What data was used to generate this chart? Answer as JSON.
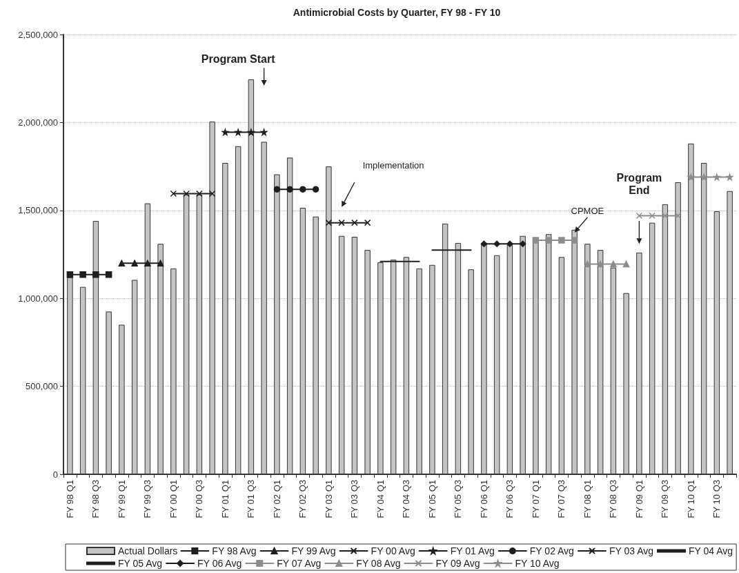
{
  "chart_data": {
    "type": "bar",
    "title": "Antimicrobial Costs by Quarter, FY 98 - FY 10",
    "categories": [
      "FY 98 Q1",
      null,
      "FY 98 Q3",
      null,
      "FY 99 Q1",
      null,
      "FY 99 Q3",
      null,
      "FY 00 Q1",
      null,
      "FY 00 Q3",
      null,
      "FY 01 Q1",
      null,
      "FY 01 Q3",
      null,
      "FY 02 Q1",
      null,
      "FY 02 Q3",
      null,
      "FY 03 Q1",
      null,
      "FY 03 Q3",
      null,
      "FY 04 Q1",
      null,
      "FY 04 Q3",
      null,
      "FY 05 Q1",
      null,
      "FY 05 Q3",
      null,
      "FY 06 Q1",
      null,
      "FY 06 Q3",
      null,
      "FY 07 Q1",
      null,
      "FY 07 Q3",
      null,
      "FY 08 Q1",
      null,
      "FY 08 Q3",
      null,
      "FY 09 Q1",
      null,
      "FY 09 Q3",
      null,
      "FY 10 Q1",
      null,
      "FY 10 Q3",
      null
    ],
    "series": [
      {
        "name": "Actual Dollars",
        "color": "#c4c4c4",
        "values": [
          1120000,
          1065000,
          1440000,
          925000,
          850000,
          1105000,
          1540000,
          1310000,
          1170000,
          1590000,
          1590000,
          2005000,
          1770000,
          1865000,
          2245000,
          1890000,
          1705000,
          1800000,
          1515000,
          1465000,
          1750000,
          1355000,
          1350000,
          1275000,
          1205000,
          1220000,
          1235000,
          1170000,
          1190000,
          1425000,
          1315000,
          1165000,
          1315000,
          1245000,
          1305000,
          1355000,
          1325000,
          1365000,
          1235000,
          1390000,
          1310000,
          1275000,
          1175000,
          1030000,
          1260000,
          1430000,
          1535000,
          1660000,
          1880000,
          1770000,
          1495000,
          1610000
        ]
      },
      {
        "name": "FY 98 Avg",
        "type": "line",
        "marker": "square",
        "color": "#1e1e1e",
        "values": [
          1135000,
          1135000,
          1135000,
          1135000,
          null,
          null,
          null,
          null,
          null,
          null,
          null,
          null,
          null,
          null,
          null,
          null,
          null,
          null,
          null,
          null,
          null,
          null,
          null,
          null,
          null,
          null,
          null,
          null,
          null,
          null,
          null,
          null,
          null,
          null,
          null,
          null,
          null,
          null,
          null,
          null,
          null,
          null,
          null,
          null,
          null,
          null,
          null,
          null,
          null,
          null,
          null,
          null
        ]
      },
      {
        "name": "FY 99 Avg",
        "type": "line",
        "marker": "triangle",
        "color": "#1e1e1e",
        "values": [
          null,
          null,
          null,
          null,
          1200000,
          1200000,
          1200000,
          1200000,
          null,
          null,
          null,
          null,
          null,
          null,
          null,
          null,
          null,
          null,
          null,
          null,
          null,
          null,
          null,
          null,
          null,
          null,
          null,
          null,
          null,
          null,
          null,
          null,
          null,
          null,
          null,
          null,
          null,
          null,
          null,
          null,
          null,
          null,
          null,
          null,
          null,
          null,
          null,
          null,
          null,
          null,
          null,
          null
        ]
      },
      {
        "name": "FY 00 Avg",
        "type": "line",
        "marker": "cross",
        "color": "#1e1e1e",
        "values": [
          null,
          null,
          null,
          null,
          null,
          null,
          null,
          null,
          1595000,
          1595000,
          1595000,
          1595000,
          null,
          null,
          null,
          null,
          null,
          null,
          null,
          null,
          null,
          null,
          null,
          null,
          null,
          null,
          null,
          null,
          null,
          null,
          null,
          null,
          null,
          null,
          null,
          null,
          null,
          null,
          null,
          null,
          null,
          null,
          null,
          null,
          null,
          null,
          null,
          null,
          null,
          null,
          null,
          null
        ]
      },
      {
        "name": "FY 01 Avg",
        "type": "line",
        "marker": "star",
        "color": "#1e1e1e",
        "values": [
          null,
          null,
          null,
          null,
          null,
          null,
          null,
          null,
          null,
          null,
          null,
          null,
          1945000,
          1945000,
          1945000,
          1945000,
          null,
          null,
          null,
          null,
          null,
          null,
          null,
          null,
          null,
          null,
          null,
          null,
          null,
          null,
          null,
          null,
          null,
          null,
          null,
          null,
          null,
          null,
          null,
          null,
          null,
          null,
          null,
          null,
          null,
          null,
          null,
          null,
          null,
          null,
          null,
          null
        ]
      },
      {
        "name": "FY 02 Avg",
        "type": "line",
        "marker": "circle",
        "color": "#1e1e1e",
        "values": [
          null,
          null,
          null,
          null,
          null,
          null,
          null,
          null,
          null,
          null,
          null,
          null,
          null,
          null,
          null,
          null,
          1620000,
          1620000,
          1620000,
          1620000,
          null,
          null,
          null,
          null,
          null,
          null,
          null,
          null,
          null,
          null,
          null,
          null,
          null,
          null,
          null,
          null,
          null,
          null,
          null,
          null,
          null,
          null,
          null,
          null,
          null,
          null,
          null,
          null,
          null,
          null,
          null,
          null
        ]
      },
      {
        "name": "FY 03 Avg",
        "type": "line",
        "marker": "cross",
        "color": "#1e1e1e",
        "values": [
          null,
          null,
          null,
          null,
          null,
          null,
          null,
          null,
          null,
          null,
          null,
          null,
          null,
          null,
          null,
          null,
          null,
          null,
          null,
          null,
          1430000,
          1430000,
          1430000,
          1430000,
          null,
          null,
          null,
          null,
          null,
          null,
          null,
          null,
          null,
          null,
          null,
          null,
          null,
          null,
          null,
          null,
          null,
          null,
          null,
          null,
          null,
          null,
          null,
          null,
          null,
          null,
          null,
          null
        ]
      },
      {
        "name": "FY 04 Avg",
        "type": "line",
        "marker": "none",
        "color": "#1e1e1e",
        "values": [
          null,
          null,
          null,
          null,
          null,
          null,
          null,
          null,
          null,
          null,
          null,
          null,
          null,
          null,
          null,
          null,
          null,
          null,
          null,
          null,
          null,
          null,
          null,
          null,
          1210000,
          1210000,
          1210000,
          1210000,
          null,
          null,
          null,
          null,
          null,
          null,
          null,
          null,
          null,
          null,
          null,
          null,
          null,
          null,
          null,
          null,
          null,
          null,
          null,
          null,
          null,
          null,
          null,
          null
        ]
      },
      {
        "name": "FY 05 Avg",
        "type": "line",
        "marker": "none",
        "color": "#1e1e1e",
        "values": [
          null,
          null,
          null,
          null,
          null,
          null,
          null,
          null,
          null,
          null,
          null,
          null,
          null,
          null,
          null,
          null,
          null,
          null,
          null,
          null,
          null,
          null,
          null,
          null,
          null,
          null,
          null,
          null,
          1275000,
          1275000,
          1275000,
          1275000,
          null,
          null,
          null,
          null,
          null,
          null,
          null,
          null,
          null,
          null,
          null,
          null,
          null,
          null,
          null,
          null,
          null,
          null,
          null,
          null
        ]
      },
      {
        "name": "FY 06 Avg",
        "type": "line",
        "marker": "diamond",
        "color": "#1e1e1e",
        "values": [
          null,
          null,
          null,
          null,
          null,
          null,
          null,
          null,
          null,
          null,
          null,
          null,
          null,
          null,
          null,
          null,
          null,
          null,
          null,
          null,
          null,
          null,
          null,
          null,
          null,
          null,
          null,
          null,
          null,
          null,
          null,
          null,
          1310000,
          1310000,
          1310000,
          1310000,
          null,
          null,
          null,
          null,
          null,
          null,
          null,
          null,
          null,
          null,
          null,
          null,
          null,
          null,
          null,
          null
        ]
      },
      {
        "name": "FY 07 Avg",
        "type": "line",
        "marker": "square",
        "color": "#8c8c8c",
        "values": [
          null,
          null,
          null,
          null,
          null,
          null,
          null,
          null,
          null,
          null,
          null,
          null,
          null,
          null,
          null,
          null,
          null,
          null,
          null,
          null,
          null,
          null,
          null,
          null,
          null,
          null,
          null,
          null,
          null,
          null,
          null,
          null,
          null,
          null,
          null,
          null,
          1330000,
          1330000,
          1330000,
          1330000,
          null,
          null,
          null,
          null,
          null,
          null,
          null,
          null,
          null,
          null,
          null,
          null
        ]
      },
      {
        "name": "FY 08 Avg",
        "type": "line",
        "marker": "triangle",
        "color": "#8c8c8c",
        "values": [
          null,
          null,
          null,
          null,
          null,
          null,
          null,
          null,
          null,
          null,
          null,
          null,
          null,
          null,
          null,
          null,
          null,
          null,
          null,
          null,
          null,
          null,
          null,
          null,
          null,
          null,
          null,
          null,
          null,
          null,
          null,
          null,
          null,
          null,
          null,
          null,
          null,
          null,
          null,
          null,
          1195000,
          1195000,
          1195000,
          1195000,
          null,
          null,
          null,
          null,
          null,
          null,
          null,
          null
        ]
      },
      {
        "name": "FY 09 Avg",
        "type": "line",
        "marker": "cross",
        "color": "#8c8c8c",
        "values": [
          null,
          null,
          null,
          null,
          null,
          null,
          null,
          null,
          null,
          null,
          null,
          null,
          null,
          null,
          null,
          null,
          null,
          null,
          null,
          null,
          null,
          null,
          null,
          null,
          null,
          null,
          null,
          null,
          null,
          null,
          null,
          null,
          null,
          null,
          null,
          null,
          null,
          null,
          null,
          null,
          null,
          null,
          null,
          null,
          1470000,
          1470000,
          1470000,
          1470000,
          null,
          null,
          null,
          null
        ]
      },
      {
        "name": "FY 10 Avg",
        "type": "line",
        "marker": "star",
        "color": "#8c8c8c",
        "values": [
          null,
          null,
          null,
          null,
          null,
          null,
          null,
          null,
          null,
          null,
          null,
          null,
          null,
          null,
          null,
          null,
          null,
          null,
          null,
          null,
          null,
          null,
          null,
          null,
          null,
          null,
          null,
          null,
          null,
          null,
          null,
          null,
          null,
          null,
          null,
          null,
          null,
          null,
          null,
          null,
          null,
          null,
          null,
          null,
          null,
          null,
          null,
          null,
          1690000,
          1690000,
          1690000,
          1690000
        ]
      }
    ],
    "ylim": [
      0,
      2500000
    ],
    "yticks": [
      0,
      {
        "value": 500000,
        "label": "500,000"
      },
      {
        "value": 1000000,
        "label": "1,000,000"
      },
      {
        "value": 1500000,
        "label": "1,500,000"
      },
      {
        "value": 2000000,
        "label": "2,000,000"
      },
      {
        "value": 2500000,
        "label": "2,500,000"
      }
    ],
    "grid": "y",
    "legend": "bottom",
    "annotations": [
      "Program Start",
      "Implementation",
      "CPMOE",
      "Program End"
    ]
  }
}
